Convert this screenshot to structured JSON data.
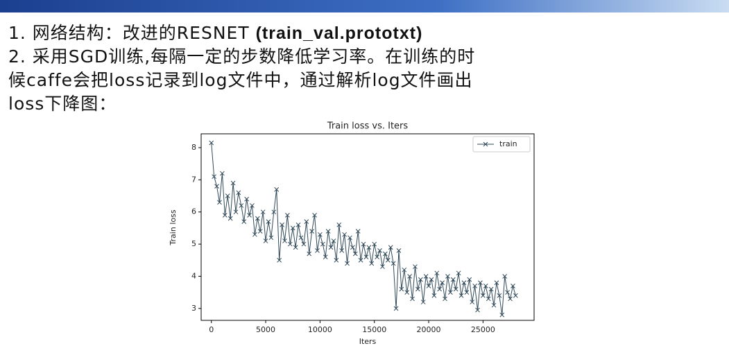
{
  "slide": {
    "lines": [
      [
        "1.  网络结构：改进的RESNET ",
        "(train_val.prototxt)"
      ],
      [
        "2.  采用SGD训练,每隔一定的步数降低学习率。在训练的时"
      ],
      [
        "候caffe会把loss记录到log文件中，通过解析log文件画出"
      ],
      [
        "loss下降图："
      ]
    ]
  },
  "chart_data": {
    "type": "line",
    "title": "Train loss  vs. Iters",
    "x_label": "Iters",
    "y_label": "Train loss",
    "legend": "upper right",
    "grid": false,
    "xlim": [
      -940,
      29700
    ],
    "ylim": [
      2.63,
      8.43
    ],
    "xticks": [
      0,
      5000,
      10000,
      15000,
      20000,
      25000
    ],
    "yticks": [
      3,
      4,
      5,
      6,
      7,
      8
    ],
    "x": [
      0,
      250,
      500,
      750,
      1000,
      1250,
      1500,
      1750,
      2000,
      2250,
      2500,
      2750,
      3000,
      3250,
      3500,
      3750,
      4000,
      4250,
      4500,
      4750,
      5000,
      5250,
      5500,
      5750,
      6000,
      6250,
      6500,
      6750,
      7000,
      7250,
      7500,
      7750,
      8000,
      8250,
      8500,
      8750,
      9000,
      9250,
      9500,
      9750,
      10000,
      10250,
      10500,
      10750,
      11000,
      11250,
      11500,
      11750,
      12000,
      12250,
      12500,
      12750,
      13000,
      13250,
      13500,
      13750,
      14000,
      14250,
      14500,
      14750,
      15000,
      15250,
      15500,
      15750,
      16000,
      16250,
      16500,
      16750,
      17000,
      17250,
      17500,
      17750,
      18000,
      18250,
      18500,
      18750,
      19000,
      19250,
      19500,
      19750,
      20000,
      20250,
      20500,
      20750,
      21000,
      21250,
      21500,
      21750,
      22000,
      22250,
      22500,
      22750,
      23000,
      23250,
      23500,
      23750,
      24000,
      24250,
      24500,
      24750,
      25000,
      25250,
      25500,
      25750,
      26000,
      26250,
      26500,
      26750,
      27000,
      27250,
      27500,
      27750,
      28000
    ],
    "series": [
      {
        "name": "train",
        "color": "#2f4858",
        "values": [
          8.15,
          7.1,
          6.8,
          6.3,
          7.2,
          5.9,
          6.5,
          5.8,
          6.9,
          6.0,
          6.6,
          6.2,
          5.7,
          6.4,
          5.9,
          6.2,
          5.3,
          5.8,
          5.4,
          6.0,
          5.1,
          5.7,
          5.2,
          6.0,
          6.7,
          4.5,
          5.6,
          5.1,
          5.9,
          5.0,
          5.5,
          4.9,
          5.6,
          5.2,
          5.0,
          5.7,
          4.7,
          5.4,
          5.9,
          4.8,
          5.3,
          5.0,
          4.6,
          5.4,
          4.9,
          5.1,
          4.5,
          5.6,
          4.8,
          5.3,
          4.4,
          5.2,
          4.9,
          4.7,
          5.4,
          4.5,
          5.0,
          4.6,
          4.9,
          4.4,
          5.0,
          4.6,
          4.8,
          4.3,
          4.7,
          4.5,
          4.9,
          4.4,
          3.0,
          4.8,
          3.6,
          4.2,
          3.5,
          4.0,
          3.3,
          4.3,
          3.6,
          3.9,
          3.2,
          4.0,
          3.7,
          3.9,
          3.4,
          4.1,
          3.6,
          3.8,
          3.3,
          4.0,
          3.5,
          3.9,
          3.6,
          4.1,
          3.4,
          3.8,
          3.5,
          3.9,
          3.2,
          3.7,
          2.95,
          3.8,
          3.4,
          3.7,
          3.3,
          3.6,
          3.1,
          3.8,
          3.4,
          2.8,
          4.0,
          3.5,
          3.3,
          3.7,
          3.4
        ]
      }
    ]
  }
}
